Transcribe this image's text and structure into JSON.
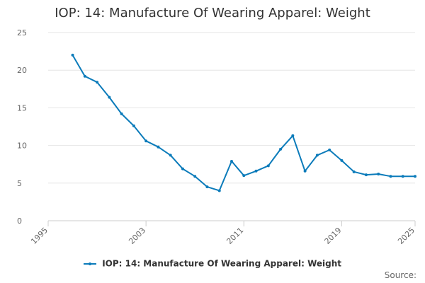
{
  "chart_data": {
    "type": "line",
    "title": "IOP: 14: Manufacture Of Wearing Apparel: Weight",
    "xlabel": "",
    "ylabel": "",
    "xlim": [
      1995,
      2025
    ],
    "ylim": [
      0,
      25
    ],
    "x_ticks": [
      "1995",
      "2003",
      "2011",
      "2019",
      "2025"
    ],
    "y_ticks": [
      "0",
      "5",
      "10",
      "15",
      "20",
      "25"
    ],
    "grid": "horizontal",
    "legend": "bottom",
    "series": [
      {
        "name": "IOP: 14: Manufacture Of Wearing Apparel: Weight",
        "color": "#0b7bba",
        "x": [
          1997,
          1998,
          1999,
          2000,
          2001,
          2002,
          2003,
          2004,
          2005,
          2006,
          2007,
          2008,
          2009,
          2010,
          2011,
          2012,
          2013,
          2014,
          2015,
          2016,
          2017,
          2018,
          2019,
          2020,
          2021,
          2022,
          2023,
          2024,
          2025
        ],
        "values": [
          22.0,
          19.2,
          18.4,
          16.4,
          14.2,
          12.6,
          10.6,
          9.8,
          8.7,
          6.9,
          5.9,
          4.5,
          4.0,
          7.9,
          6.0,
          6.6,
          7.3,
          9.5,
          11.3,
          6.6,
          8.7,
          9.4,
          8.0,
          6.5,
          6.1,
          6.2,
          5.9,
          5.9,
          5.9
        ]
      }
    ]
  },
  "credits": "Source:"
}
